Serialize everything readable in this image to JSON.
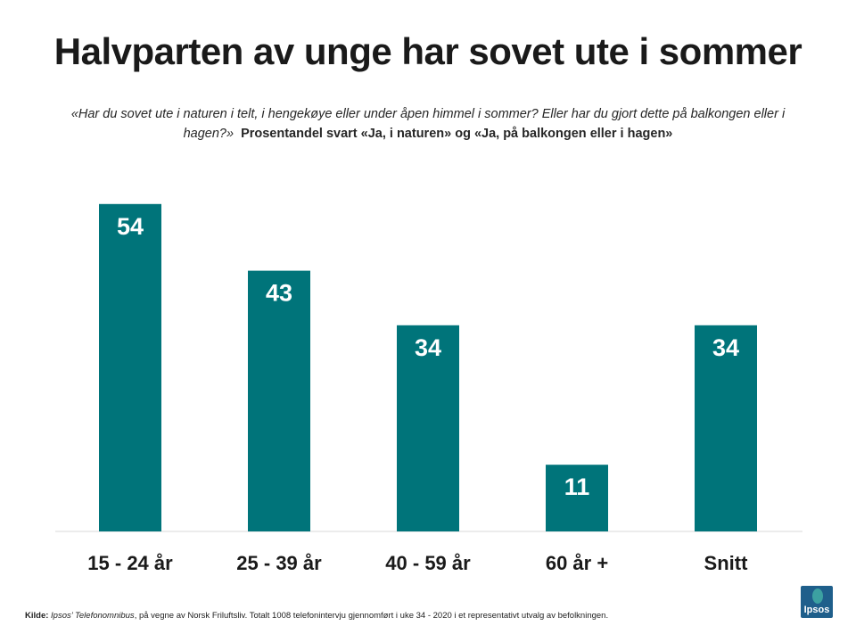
{
  "title": "Halvparten av unge har sovet ute i sommer",
  "subtitle": {
    "question": "«Har du sovet ute i naturen i telt, i hengekøye eller under åpen himmel i sommer? Eller har du gjort dette på balkongen eller i hagen?»",
    "metric": "Prosentandel svart «Ja, i naturen» og «Ja, på balkongen eller i hagen»"
  },
  "footer": {
    "kilde_label": "Kilde:",
    "source_name": "Ipsos’ Telefonomnibus",
    "source_text": ", på vegne av Norsk Friluftsliv. Totalt 1008 telefonintervju gjennomført i uke 34 - 2020 i et representativt utvalg av befolkningen."
  },
  "logo": {
    "text": "Ipsos"
  },
  "colors": {
    "bar": "#00747a",
    "axis": "#d9d9d9",
    "bar_label": "#ffffff"
  },
  "chart_data": {
    "type": "bar",
    "categories": [
      "15 - 24 år",
      "25 - 39 år",
      "40 - 59 år",
      "60 år +",
      "Snitt"
    ],
    "values": [
      54,
      43,
      34,
      11,
      34
    ],
    "title": "Halvparten av unge har sovet ute i sommer",
    "xlabel": "",
    "ylabel": "",
    "ylim": [
      0,
      60
    ],
    "grid": false,
    "legend": "none",
    "data_labels": true
  }
}
